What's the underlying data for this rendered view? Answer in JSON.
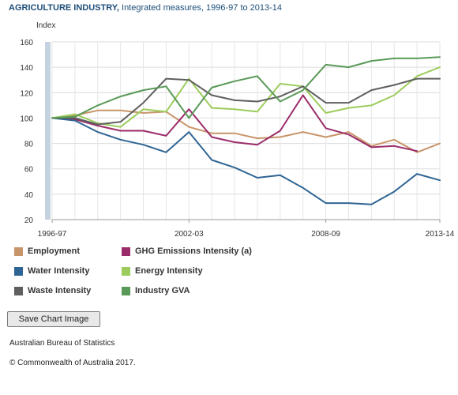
{
  "header": {
    "title_bold": "AGRICULTURE INDUSTRY,",
    "title_rest": " Integrated measures, 1996-97 to 2013-14"
  },
  "footer": {
    "save_button": "Save Chart Image",
    "source": "Australian Bureau of Statistics",
    "copyright": "© Commonwealth of Australia 2017."
  },
  "chart_data": {
    "type": "line",
    "title": "AGRICULTURE INDUSTRY, Integrated measures, 1996-97 to 2013-14",
    "ylabel": "Index",
    "xlabel": "",
    "ylim": [
      20,
      160
    ],
    "yticks": [
      20,
      40,
      60,
      80,
      100,
      120,
      140,
      160
    ],
    "x": [
      "1996-97",
      "1997-98",
      "1998-99",
      "1999-00",
      "2000-01",
      "2001-02",
      "2002-03",
      "2003-04",
      "2004-05",
      "2005-06",
      "2006-07",
      "2007-08",
      "2008-09",
      "2009-10",
      "2010-11",
      "2011-12",
      "2012-13",
      "2013-14"
    ],
    "xtick_labels": [
      "1996-97",
      "2002-03",
      "2008-09",
      "2013-14"
    ],
    "grid": true,
    "legend_position": "bottom",
    "series": [
      {
        "name": "Employment",
        "color": "#c8956a",
        "values": [
          100,
          102,
          106,
          106,
          104,
          105,
          93,
          88,
          88,
          84,
          85,
          89,
          85,
          89,
          78,
          83,
          73,
          80
        ]
      },
      {
        "name": "GHG Emissions Intensity (a)",
        "color": "#9b2c6a",
        "values": [
          100,
          99,
          94,
          90,
          90,
          86,
          107,
          85,
          81,
          79,
          90,
          118,
          92,
          87,
          77,
          78,
          74,
          null
        ]
      },
      {
        "name": "Water Intensity",
        "color": "#2f6594",
        "values": [
          100,
          98,
          89,
          83,
          79,
          73,
          89,
          67,
          61,
          53,
          55,
          45,
          33,
          33,
          32,
          42,
          56,
          51
        ]
      },
      {
        "name": "Energy Intensity",
        "color": "#9ccc5c",
        "values": [
          100,
          103,
          96,
          93,
          107,
          105,
          131,
          108,
          107,
          105,
          127,
          125,
          104,
          108,
          110,
          118,
          133,
          140
        ]
      },
      {
        "name": "Waste Intensity",
        "color": "#5f5f5f",
        "values": [
          100,
          100,
          95,
          97,
          112,
          131,
          130,
          118,
          114,
          113,
          117,
          125,
          112,
          112,
          122,
          126,
          131,
          131
        ]
      },
      {
        "name": "Industry GVA",
        "color": "#5a9a58",
        "values": [
          100,
          101,
          110,
          117,
          122,
          125,
          100,
          124,
          129,
          133,
          113,
          122,
          142,
          140,
          145,
          147,
          147,
          148
        ]
      }
    ]
  }
}
